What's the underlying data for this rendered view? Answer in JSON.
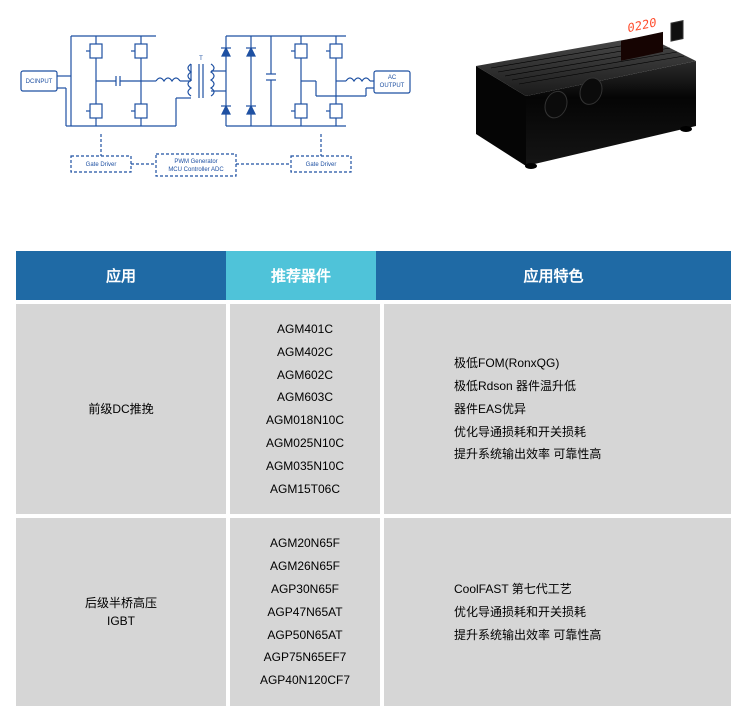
{
  "diagram": {
    "stroke": "#1e50a2",
    "labels": {
      "dcinput": "DCINPUT",
      "acoutput": "AC\nOUTPUT",
      "gate_driver": "Gate Driver",
      "pwm": "PWM Generator\nMCU Controller  ADC",
      "t": "T"
    }
  },
  "product": {
    "body_color": "#0a0a0a",
    "highlight": "#3b3b3b",
    "display_bg": "#1a0000",
    "display_color": "#ff4a2a",
    "display_text": "0220"
  },
  "table": {
    "headers": {
      "application": "应用",
      "devices": "推荐器件",
      "features": "应用特色"
    },
    "header_colors": {
      "application": "#1f6aa5",
      "devices": "#4fc3d9",
      "features": "#1f6aa5"
    },
    "row_bg": "#d6d6d6",
    "rows": [
      {
        "application": "前级DC推挽",
        "devices": [
          "AGM401C",
          "AGM402C",
          "AGM602C",
          "AGM603C",
          "AGM018N10C",
          "AGM025N10C",
          "AGM035N10C",
          "AGM15T06C"
        ],
        "features": [
          "极低FOM(RonxQG)",
          "极低Rdson 器件温升低",
          "器件EAS优异",
          "优化导通损耗和开关损耗",
          "提升系统输出效率 可靠性高"
        ]
      },
      {
        "application": "后级半桥高压\nIGBT",
        "devices": [
          "AGM20N65F",
          "AGM26N65F",
          "AGP30N65F",
          "AGP47N65AT",
          "AGP50N65AT",
          "AGP75N65EF7",
          "AGP40N120CF7"
        ],
        "features": [
          "CoolFAST 第七代工艺",
          "优化导通损耗和开关损耗",
          "提升系统输出效率 可靠性高"
        ]
      }
    ]
  }
}
